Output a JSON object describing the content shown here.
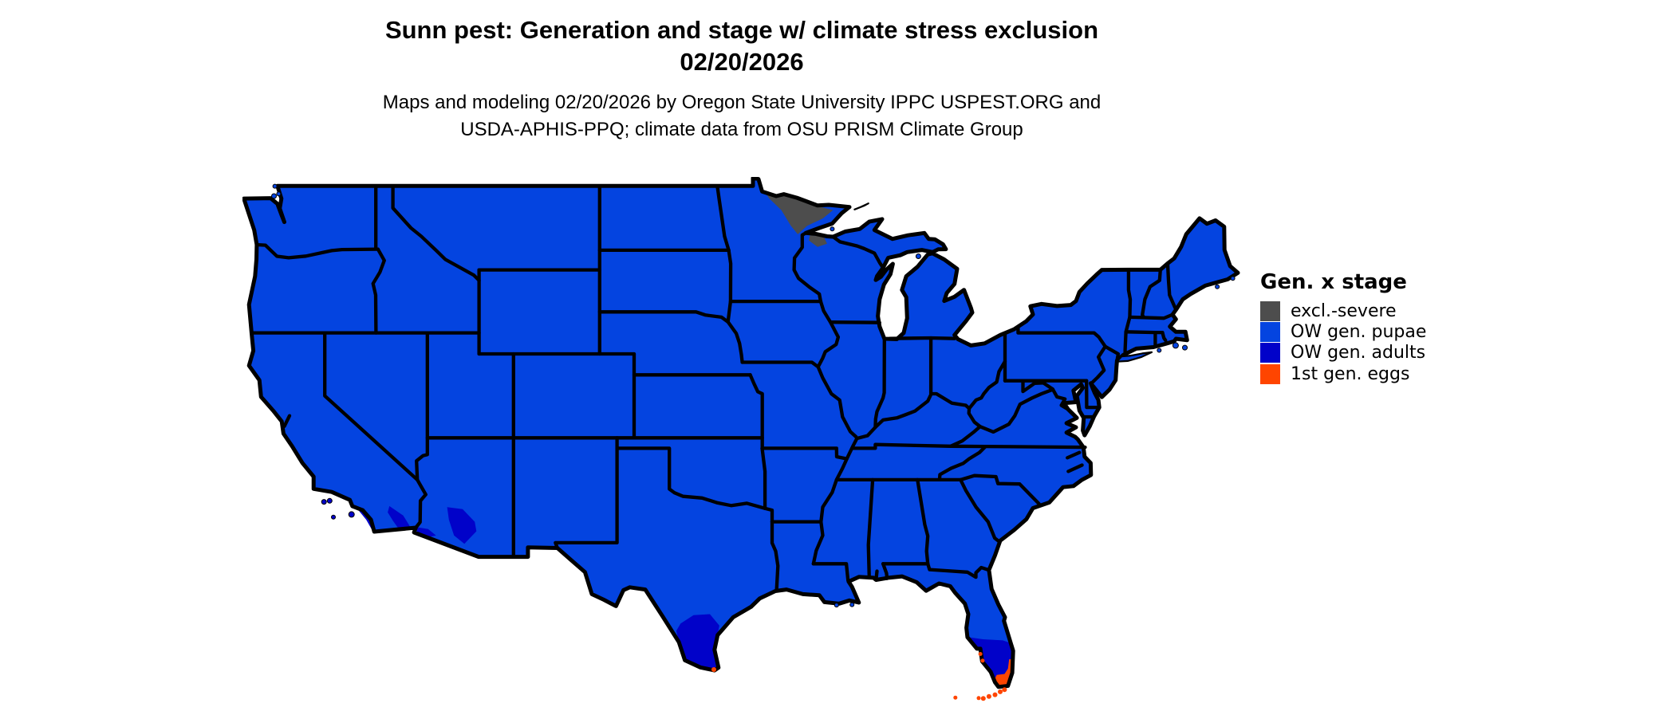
{
  "title": {
    "line1": "Sunn pest: Generation and stage w/ climate stress exclusion",
    "line2": "02/20/2026"
  },
  "subtitle": {
    "line1": "Maps and modeling 02/20/2026 by Oregon State University IPPC USPEST.ORG and",
    "line2": "USDA-APHIS-PPQ; climate data from OSU PRISM Climate Group"
  },
  "legend": {
    "title": "Gen. x stage",
    "items": [
      {
        "key": "severe",
        "label": "excl.-severe",
        "color": "#4D4D4D"
      },
      {
        "key": "pupae",
        "label": "OW gen. pupae",
        "color": "#0444E0"
      },
      {
        "key": "adults",
        "label": "OW gen. adults",
        "color": "#0102C9"
      },
      {
        "key": "eggs",
        "label": "1st gen. eggs",
        "color": "#FF4500"
      }
    ]
  },
  "map": {
    "type": "categorical choropleth (gridded pest phenology map, contiguous United States)",
    "border_color": "#000000",
    "background_color": "#FFFFFF",
    "dominant_category": "OW gen. pupae",
    "regions": [
      {
        "area": "Most of the contiguous United States",
        "category": "OW gen. pupae"
      },
      {
        "area": "Northeastern Minnesota (Arrowhead) and far northern Wisconsin",
        "category": "excl.-severe"
      },
      {
        "area": "Southern Texas (Rio Grande Valley and coastal bend)",
        "category": "OW gen. adults"
      },
      {
        "area": "Southern Florida peninsula",
        "category": "OW gen. adults"
      },
      {
        "area": "Far southern Florida tip, southwest coast and Florida Keys",
        "category": "1st gen. eggs"
      },
      {
        "area": "Brownsville area at the southern tip of Texas",
        "category": "1st gen. eggs"
      },
      {
        "area": "Southwestern Arizona low deserts (Yuma to Phoenix-Tucson)",
        "category": "OW gen. adults"
      },
      {
        "area": "Southern California low deserts and southern coastal strip",
        "category": "OW gen. adults"
      }
    ]
  }
}
